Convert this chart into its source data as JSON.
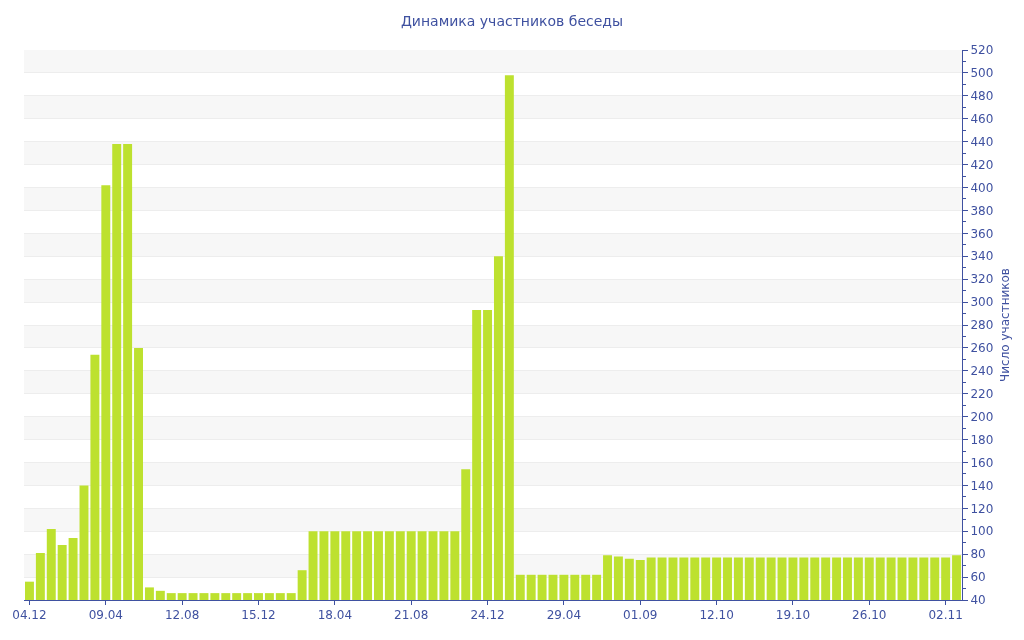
{
  "chart_data": {
    "type": "bar",
    "title": "Динамика участников беседы",
    "ylabel": "Число участников",
    "categories": [
      "04.12",
      null,
      null,
      null,
      null,
      null,
      null,
      "09.04",
      null,
      null,
      null,
      null,
      null,
      null,
      "12.08",
      null,
      null,
      null,
      null,
      null,
      null,
      "15.12",
      null,
      null,
      null,
      null,
      null,
      null,
      "18.04",
      null,
      null,
      null,
      null,
      null,
      null,
      "21.08",
      null,
      null,
      null,
      null,
      null,
      null,
      "24.12",
      null,
      null,
      null,
      null,
      null,
      null,
      "29.04",
      null,
      null,
      null,
      null,
      null,
      null,
      "01.09",
      null,
      null,
      null,
      null,
      null,
      null,
      "12.10",
      null,
      null,
      null,
      null,
      null,
      null,
      "19.10",
      null,
      null,
      null,
      null,
      null,
      null,
      "26.10",
      null,
      null,
      null,
      null,
      null,
      null,
      "02.11",
      null
    ],
    "values": [
      56,
      81,
      102,
      88,
      94,
      140,
      254,
      402,
      438,
      438,
      260,
      51,
      48,
      46,
      46,
      46,
      46,
      46,
      46,
      46,
      46,
      46,
      46,
      46,
      46,
      66,
      100,
      100,
      100,
      100,
      100,
      100,
      100,
      100,
      100,
      100,
      100,
      100,
      100,
      100,
      154,
      293,
      293,
      340,
      498,
      62,
      62,
      62,
      62,
      62,
      62,
      62,
      62,
      79,
      78,
      76,
      75,
      77,
      77,
      77,
      77,
      77,
      77,
      77,
      77,
      77,
      77,
      77,
      77,
      77,
      77,
      77,
      77,
      77,
      77,
      77,
      77,
      77,
      77,
      77,
      77,
      77,
      77,
      77,
      77,
      79
    ],
    "color": "#bde12f",
    "ylim": [
      40,
      520
    ],
    "yticks": [
      40,
      60,
      80,
      100,
      120,
      140,
      160,
      180,
      200,
      220,
      240,
      260,
      280,
      300,
      320,
      340,
      360,
      380,
      400,
      420,
      440,
      460,
      480,
      500,
      520
    ],
    "grid": "y"
  }
}
